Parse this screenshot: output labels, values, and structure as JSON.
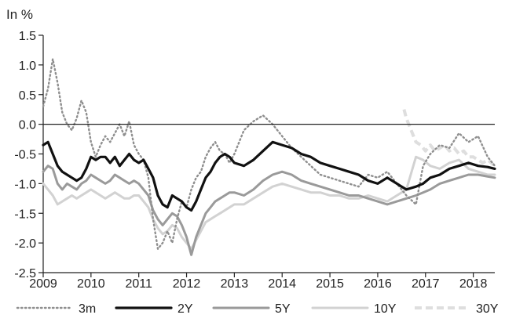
{
  "chart_data": {
    "type": "line",
    "title": "",
    "xlabel": "",
    "ylabel": "In %",
    "ylim": [
      -2.5,
      1.5
    ],
    "xlim": [
      2009.0,
      2018.45
    ],
    "x_ticks": [
      "2009",
      "2010",
      "2011",
      "2012",
      "2013",
      "2014",
      "2015",
      "2016",
      "2017",
      "2018"
    ],
    "y_ticks": [
      "1.5",
      "1.0",
      "0.5",
      "0.0",
      "-0.5",
      "-1.0",
      "-1.5",
      "-2.0",
      "-2.5"
    ],
    "grid": false,
    "zero_line": true,
    "legend_position": "bottom",
    "series": [
      {
        "name": "3m",
        "color": "#8f8f8f",
        "style": "dotted",
        "x": [
          2009.0,
          2009.1,
          2009.2,
          2009.3,
          2009.4,
          2009.5,
          2009.6,
          2009.7,
          2009.8,
          2009.9,
          2010.0,
          2010.1,
          2010.2,
          2010.3,
          2010.4,
          2010.5,
          2010.6,
          2010.7,
          2010.8,
          2010.9,
          2011.0,
          2011.1,
          2011.2,
          2011.3,
          2011.4,
          2011.5,
          2011.6,
          2011.7,
          2011.8,
          2011.9,
          2012.0,
          2012.1,
          2012.2,
          2012.3,
          2012.4,
          2012.5,
          2012.6,
          2012.7,
          2012.8,
          2012.9,
          2013.0,
          2013.2,
          2013.4,
          2013.6,
          2013.8,
          2014.0,
          2014.2,
          2014.4,
          2014.6,
          2014.8,
          2015.0,
          2015.2,
          2015.4,
          2015.6,
          2015.8,
          2016.0,
          2016.2,
          2016.4,
          2016.6,
          2016.8,
          2016.95,
          2017.1,
          2017.3,
          2017.5,
          2017.7,
          2017.9,
          2018.1,
          2018.3,
          2018.45
        ],
        "values": [
          0.3,
          0.6,
          1.1,
          0.7,
          0.2,
          0.0,
          -0.1,
          0.1,
          0.4,
          0.2,
          -0.3,
          -0.55,
          -0.35,
          -0.2,
          -0.3,
          -0.15,
          0.0,
          -0.2,
          0.05,
          -0.35,
          -0.5,
          -0.6,
          -0.9,
          -1.6,
          -2.1,
          -2.0,
          -1.8,
          -2.0,
          -1.6,
          -1.3,
          -1.4,
          -1.1,
          -0.9,
          -0.8,
          -0.55,
          -0.4,
          -0.3,
          -0.45,
          -0.5,
          -0.65,
          -0.5,
          -0.1,
          0.05,
          0.15,
          0.0,
          -0.2,
          -0.4,
          -0.55,
          -0.7,
          -0.85,
          -0.9,
          -0.95,
          -1.0,
          -1.05,
          -0.85,
          -0.9,
          -0.8,
          -1.0,
          -1.2,
          -1.35,
          -0.7,
          -0.5,
          -0.35,
          -0.4,
          -0.15,
          -0.3,
          -0.2,
          -0.55,
          -0.7
        ]
      },
      {
        "name": "2Y",
        "color": "#111111",
        "style": "solid-bold",
        "x": [
          2009.0,
          2009.1,
          2009.2,
          2009.3,
          2009.4,
          2009.5,
          2009.6,
          2009.7,
          2009.8,
          2009.9,
          2010.0,
          2010.1,
          2010.2,
          2010.3,
          2010.4,
          2010.5,
          2010.6,
          2010.7,
          2010.8,
          2010.9,
          2011.0,
          2011.1,
          2011.2,
          2011.3,
          2011.4,
          2011.5,
          2011.6,
          2011.7,
          2011.8,
          2011.9,
          2012.0,
          2012.1,
          2012.2,
          2012.3,
          2012.4,
          2012.5,
          2012.6,
          2012.7,
          2012.8,
          2012.9,
          2013.0,
          2013.2,
          2013.4,
          2013.6,
          2013.8,
          2014.0,
          2014.2,
          2014.4,
          2014.6,
          2014.8,
          2015.0,
          2015.2,
          2015.4,
          2015.6,
          2015.8,
          2016.0,
          2016.2,
          2016.4,
          2016.6,
          2016.8,
          2016.95,
          2017.1,
          2017.3,
          2017.5,
          2017.7,
          2017.9,
          2018.1,
          2018.3,
          2018.45
        ],
        "values": [
          -0.35,
          -0.3,
          -0.5,
          -0.7,
          -0.8,
          -0.85,
          -0.9,
          -0.95,
          -0.9,
          -0.75,
          -0.55,
          -0.6,
          -0.55,
          -0.55,
          -0.65,
          -0.55,
          -0.7,
          -0.6,
          -0.5,
          -0.6,
          -0.65,
          -0.6,
          -0.75,
          -0.9,
          -1.2,
          -1.35,
          -1.4,
          -1.2,
          -1.25,
          -1.3,
          -1.4,
          -1.45,
          -1.3,
          -1.1,
          -0.9,
          -0.8,
          -0.65,
          -0.55,
          -0.5,
          -0.55,
          -0.65,
          -0.7,
          -0.6,
          -0.45,
          -0.3,
          -0.35,
          -0.4,
          -0.5,
          -0.55,
          -0.65,
          -0.7,
          -0.75,
          -0.8,
          -0.85,
          -0.95,
          -1.0,
          -0.9,
          -1.0,
          -1.1,
          -1.05,
          -1.0,
          -0.9,
          -0.85,
          -0.75,
          -0.7,
          -0.65,
          -0.7,
          -0.72,
          -0.75
        ]
      },
      {
        "name": "5Y",
        "color": "#9a9a9a",
        "style": "solid",
        "x": [
          2009.0,
          2009.1,
          2009.2,
          2009.3,
          2009.4,
          2009.5,
          2009.6,
          2009.7,
          2009.8,
          2009.9,
          2010.0,
          2010.1,
          2010.2,
          2010.3,
          2010.4,
          2010.5,
          2010.6,
          2010.7,
          2010.8,
          2010.9,
          2011.0,
          2011.1,
          2011.2,
          2011.3,
          2011.4,
          2011.5,
          2011.6,
          2011.7,
          2011.8,
          2011.9,
          2012.0,
          2012.1,
          2012.2,
          2012.3,
          2012.4,
          2012.5,
          2012.6,
          2012.7,
          2012.8,
          2012.9,
          2013.0,
          2013.2,
          2013.4,
          2013.6,
          2013.8,
          2014.0,
          2014.2,
          2014.4,
          2014.6,
          2014.8,
          2015.0,
          2015.2,
          2015.4,
          2015.6,
          2015.8,
          2016.0,
          2016.2,
          2016.4,
          2016.6,
          2016.8,
          2016.95,
          2017.1,
          2017.3,
          2017.5,
          2017.7,
          2017.9,
          2018.1,
          2018.3,
          2018.45
        ],
        "values": [
          -0.8,
          -0.7,
          -0.75,
          -1.0,
          -1.1,
          -1.0,
          -1.05,
          -1.1,
          -1.0,
          -0.95,
          -0.85,
          -0.9,
          -0.95,
          -1.0,
          -0.95,
          -0.85,
          -0.9,
          -0.95,
          -1.0,
          -0.95,
          -1.0,
          -1.1,
          -1.2,
          -1.45,
          -1.6,
          -1.7,
          -1.6,
          -1.5,
          -1.55,
          -1.7,
          -1.9,
          -2.2,
          -1.9,
          -1.7,
          -1.5,
          -1.4,
          -1.3,
          -1.25,
          -1.2,
          -1.15,
          -1.15,
          -1.2,
          -1.1,
          -0.95,
          -0.85,
          -0.8,
          -0.85,
          -0.95,
          -1.0,
          -1.05,
          -1.1,
          -1.15,
          -1.2,
          -1.2,
          -1.25,
          -1.3,
          -1.35,
          -1.3,
          -1.25,
          -1.2,
          -1.15,
          -1.1,
          -1.0,
          -0.95,
          -0.9,
          -0.85,
          -0.85,
          -0.88,
          -0.9
        ]
      },
      {
        "name": "10Y",
        "color": "#d2d2d2",
        "style": "solid",
        "x": [
          2009.0,
          2009.1,
          2009.2,
          2009.3,
          2009.4,
          2009.5,
          2009.6,
          2009.7,
          2009.8,
          2009.9,
          2010.0,
          2010.1,
          2010.2,
          2010.3,
          2010.4,
          2010.5,
          2010.6,
          2010.7,
          2010.8,
          2010.9,
          2011.0,
          2011.1,
          2011.2,
          2011.3,
          2011.4,
          2011.5,
          2011.6,
          2011.7,
          2011.8,
          2011.9,
          2012.0,
          2012.1,
          2012.2,
          2012.3,
          2012.4,
          2012.5,
          2012.6,
          2012.7,
          2012.8,
          2012.9,
          2013.0,
          2013.2,
          2013.4,
          2013.6,
          2013.8,
          2014.0,
          2014.2,
          2014.4,
          2014.6,
          2014.8,
          2015.0,
          2015.2,
          2015.4,
          2015.6,
          2015.8,
          2016.0,
          2016.2,
          2016.4,
          2016.6,
          2016.8,
          2016.95,
          2017.1,
          2017.3,
          2017.5,
          2017.7,
          2017.9,
          2018.1,
          2018.3,
          2018.45
        ],
        "values": [
          -1.0,
          -1.1,
          -1.2,
          -1.35,
          -1.3,
          -1.25,
          -1.2,
          -1.25,
          -1.2,
          -1.15,
          -1.1,
          -1.15,
          -1.2,
          -1.25,
          -1.2,
          -1.15,
          -1.2,
          -1.25,
          -1.25,
          -1.2,
          -1.2,
          -1.3,
          -1.4,
          -1.6,
          -1.75,
          -1.85,
          -1.8,
          -1.7,
          -1.75,
          -1.9,
          -2.0,
          -2.1,
          -1.95,
          -1.8,
          -1.65,
          -1.6,
          -1.55,
          -1.5,
          -1.45,
          -1.4,
          -1.35,
          -1.35,
          -1.25,
          -1.15,
          -1.05,
          -1.0,
          -1.05,
          -1.1,
          -1.15,
          -1.15,
          -1.2,
          -1.2,
          -1.25,
          -1.25,
          -1.2,
          -1.25,
          -1.3,
          -1.2,
          -1.1,
          -0.55,
          -0.6,
          -0.7,
          -0.75,
          -0.65,
          -0.6,
          -0.75,
          -0.8,
          -0.85,
          -0.85
        ]
      },
      {
        "name": "30Y",
        "color": "#dedede",
        "style": "dashed",
        "x": [
          2016.55,
          2016.6,
          2016.7,
          2016.8,
          2016.9,
          2017.0,
          2017.1,
          2017.2,
          2017.3,
          2017.4,
          2017.5,
          2017.6,
          2017.7,
          2017.8,
          2017.9,
          2018.0,
          2018.1,
          2018.2,
          2018.3,
          2018.45
        ],
        "values": [
          0.25,
          0.1,
          -0.1,
          -0.3,
          -0.35,
          -0.45,
          -0.35,
          -0.45,
          -0.4,
          -0.35,
          -0.45,
          -0.4,
          -0.5,
          -0.45,
          -0.55,
          -0.55,
          -0.6,
          -0.65,
          -0.6,
          -0.7
        ]
      }
    ]
  }
}
